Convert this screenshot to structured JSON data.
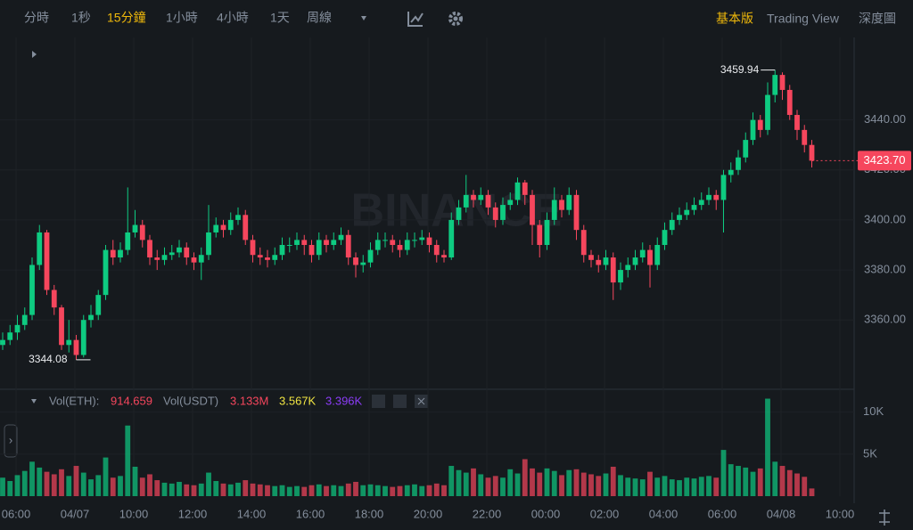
{
  "chart_data": {
    "type": "candlestick",
    "toolbar": {
      "intervals": [
        "分時",
        "1秒",
        "15分鐘",
        "1小時",
        "4小時",
        "1天",
        "周線"
      ],
      "active_interval": 2,
      "tabs": [
        "基本版",
        "Trading View",
        "深度圖"
      ],
      "active_tab": 0
    },
    "watermark": "BINANCE",
    "up_color": "#0ecb81",
    "down_color": "#f6465d",
    "open": [
      3350,
      3352,
      3355,
      3358,
      3362,
      3382,
      3395,
      3372,
      3365,
      3350,
      3352,
      3346,
      3360,
      3362,
      3370,
      3388,
      3385,
      3388,
      3395,
      3398,
      3392,
      3385,
      3384,
      3386,
      3387,
      3389,
      3385,
      3383,
      3386,
      3395,
      3398,
      3396,
      3400,
      3402,
      3392,
      3386,
      3385,
      3384,
      3386,
      3390,
      3390,
      3392,
      3390,
      3386,
      3392,
      3390,
      3392,
      3394,
      3385,
      3382,
      3383,
      3388,
      3392,
      3392,
      3390,
      3388,
      3392,
      3392,
      3393,
      3390,
      3386,
      3385,
      3400,
      3405,
      3410,
      3408,
      3410,
      3405,
      3400,
      3406,
      3408,
      3415,
      3410,
      3398,
      3390,
      3400,
      3408,
      3404,
      3410,
      3396,
      3386,
      3384,
      3382,
      3385,
      3375,
      3380,
      3382,
      3385,
      3388,
      3382,
      3390,
      3396,
      3400,
      3402,
      3404,
      3406,
      3408,
      3410,
      3408,
      3418,
      3420,
      3425,
      3432,
      3440,
      3436,
      3450,
      3458,
      3452,
      3442,
      3436,
      3430
    ],
    "high": [
      3355,
      3358,
      3362,
      3365,
      3385,
      3398,
      3396,
      3374,
      3366,
      3360,
      3354,
      3362,
      3366,
      3372,
      3390,
      3392,
      3391,
      3413,
      3404,
      3400,
      3394,
      3388,
      3389,
      3390,
      3392,
      3391,
      3387,
      3389,
      3406,
      3401,
      3400,
      3403,
      3405,
      3404,
      3394,
      3389,
      3388,
      3389,
      3393,
      3393,
      3395,
      3394,
      3392,
      3395,
      3394,
      3395,
      3397,
      3396,
      3387,
      3386,
      3391,
      3395,
      3395,
      3394,
      3392,
      3395,
      3395,
      3396,
      3395,
      3392,
      3388,
      3403,
      3408,
      3418,
      3412,
      3413,
      3412,
      3407,
      3409,
      3411,
      3417,
      3416,
      3412,
      3400,
      3403,
      3413,
      3410,
      3413,
      3412,
      3398,
      3388,
      3386,
      3388,
      3387,
      3383,
      3385,
      3388,
      3391,
      3390,
      3393,
      3399,
      3403,
      3405,
      3407,
      3409,
      3411,
      3413,
      3412,
      3420,
      3423,
      3428,
      3435,
      3443,
      3442,
      3455,
      3459.94,
      3459,
      3454,
      3444,
      3438,
      3432
    ],
    "low": [
      3348,
      3350,
      3352,
      3356,
      3360,
      3380,
      3370,
      3362,
      3348,
      3347,
      3344.08,
      3345,
      3357,
      3360,
      3368,
      3382,
      3383,
      3386,
      3393,
      3389,
      3382,
      3380,
      3382,
      3384,
      3385,
      3382,
      3380,
      3376,
      3384,
      3393,
      3393,
      3394,
      3398,
      3390,
      3383,
      3382,
      3381,
      3382,
      3384,
      3387,
      3388,
      3386,
      3383,
      3384,
      3387,
      3388,
      3390,
      3382,
      3377,
      3379,
      3381,
      3386,
      3389,
      3387,
      3385,
      3386,
      3389,
      3390,
      3387,
      3383,
      3383,
      3384,
      3398,
      3403,
      3405,
      3406,
      3402,
      3397,
      3398,
      3404,
      3406,
      3406,
      3390,
      3385,
      3388,
      3398,
      3401,
      3402,
      3392,
      3383,
      3381,
      3379,
      3380,
      3368,
      3372,
      3377,
      3380,
      3383,
      3373,
      3380,
      3388,
      3394,
      3398,
      3400,
      3402,
      3404,
      3406,
      3404,
      3395,
      3415,
      3418,
      3423,
      3430,
      3433,
      3434,
      3447,
      3448,
      3440,
      3432,
      3427,
      3421
    ],
    "close": [
      3352,
      3355,
      3358,
      3362,
      3382,
      3395,
      3372,
      3365,
      3350,
      3352,
      3346,
      3360,
      3362,
      3370,
      3388,
      3385,
      3388,
      3395,
      3398,
      3392,
      3385,
      3384,
      3386,
      3387,
      3389,
      3385,
      3383,
      3386,
      3395,
      3398,
      3396,
      3400,
      3402,
      3392,
      3386,
      3385,
      3384,
      3386,
      3390,
      3390,
      3392,
      3390,
      3386,
      3392,
      3390,
      3392,
      3394,
      3385,
      3382,
      3383,
      3388,
      3392,
      3392,
      3390,
      3388,
      3392,
      3392,
      3393,
      3390,
      3386,
      3385,
      3400,
      3405,
      3410,
      3408,
      3410,
      3405,
      3400,
      3406,
      3408,
      3415,
      3410,
      3398,
      3390,
      3400,
      3408,
      3404,
      3410,
      3396,
      3386,
      3384,
      3382,
      3385,
      3375,
      3380,
      3382,
      3385,
      3388,
      3382,
      3390,
      3396,
      3400,
      3402,
      3404,
      3406,
      3408,
      3410,
      3408,
      3418,
      3420,
      3425,
      3432,
      3440,
      3436,
      3450,
      3458,
      3452,
      3442,
      3436,
      3430,
      3423.7
    ],
    "volume": [
      2200,
      1800,
      2500,
      3000,
      4100,
      3400,
      2900,
      2600,
      3200,
      2400,
      3600,
      2800,
      2000,
      2500,
      4600,
      2200,
      2400,
      8400,
      3500,
      2200,
      2600,
      1900,
      1600,
      1500,
      1700,
      1400,
      1300,
      1500,
      2800,
      1800,
      1500,
      1400,
      1600,
      1900,
      1500,
      1400,
      1300,
      1200,
      1300,
      1100,
      1200,
      1100,
      1300,
      1400,
      1200,
      1300,
      1200,
      1500,
      1700,
      1300,
      1400,
      1300,
      1200,
      1100,
      1200,
      1300,
      1400,
      1200,
      1300,
      1500,
      1300,
      3600,
      3100,
      2800,
      3300,
      2600,
      2200,
      2400,
      2200,
      3200,
      2700,
      4400,
      3300,
      2800,
      3300,
      3000,
      2500,
      3100,
      3200,
      2800,
      2600,
      2400,
      2700,
      3500,
      2500,
      2200,
      2100,
      2000,
      2900,
      2200,
      2400,
      2000,
      1900,
      2200,
      2100,
      2300,
      2400,
      2200,
      5500,
      3800,
      3600,
      3400,
      2900,
      3300,
      11600,
      4100,
      3600,
      3100,
      2700,
      2300,
      914.659
    ],
    "ylim": [
      3333,
      3473
    ],
    "yticks": [
      {
        "value": 3360,
        "label": "3360.00"
      },
      {
        "value": 3380,
        "label": "3380.00"
      },
      {
        "value": 3400,
        "label": "3400.00"
      },
      {
        "value": 3420,
        "label": "3420.00"
      },
      {
        "value": 3440,
        "label": "3440.00"
      }
    ],
    "last_price": {
      "value": 3423.7,
      "label": "3423.70"
    },
    "volume_ylim": [
      0,
      12400
    ],
    "volume_ticks": [
      {
        "value": 5000,
        "label": "5K"
      },
      {
        "value": 10000,
        "label": "10K"
      }
    ],
    "volume_legend": {
      "eth_label": "Vol(ETH):",
      "usdt_label": "Vol(USDT)",
      "usdt": {
        "value": 3133000,
        "label": "3.133M"
      },
      "ma1": {
        "value": 3567,
        "label": "3.567K",
        "color": "#f0e442"
      },
      "ma2": {
        "value": 3396,
        "label": "3.396K",
        "color": "#8b3cf7"
      }
    },
    "x_labels": [
      "06:00",
      "04/07",
      "10:00",
      "12:00",
      "14:00",
      "16:00",
      "18:00",
      "20:00",
      "22:00",
      "00:00",
      "02:00",
      "04:00",
      "06:00",
      "04/08",
      "10:00"
    ]
  }
}
